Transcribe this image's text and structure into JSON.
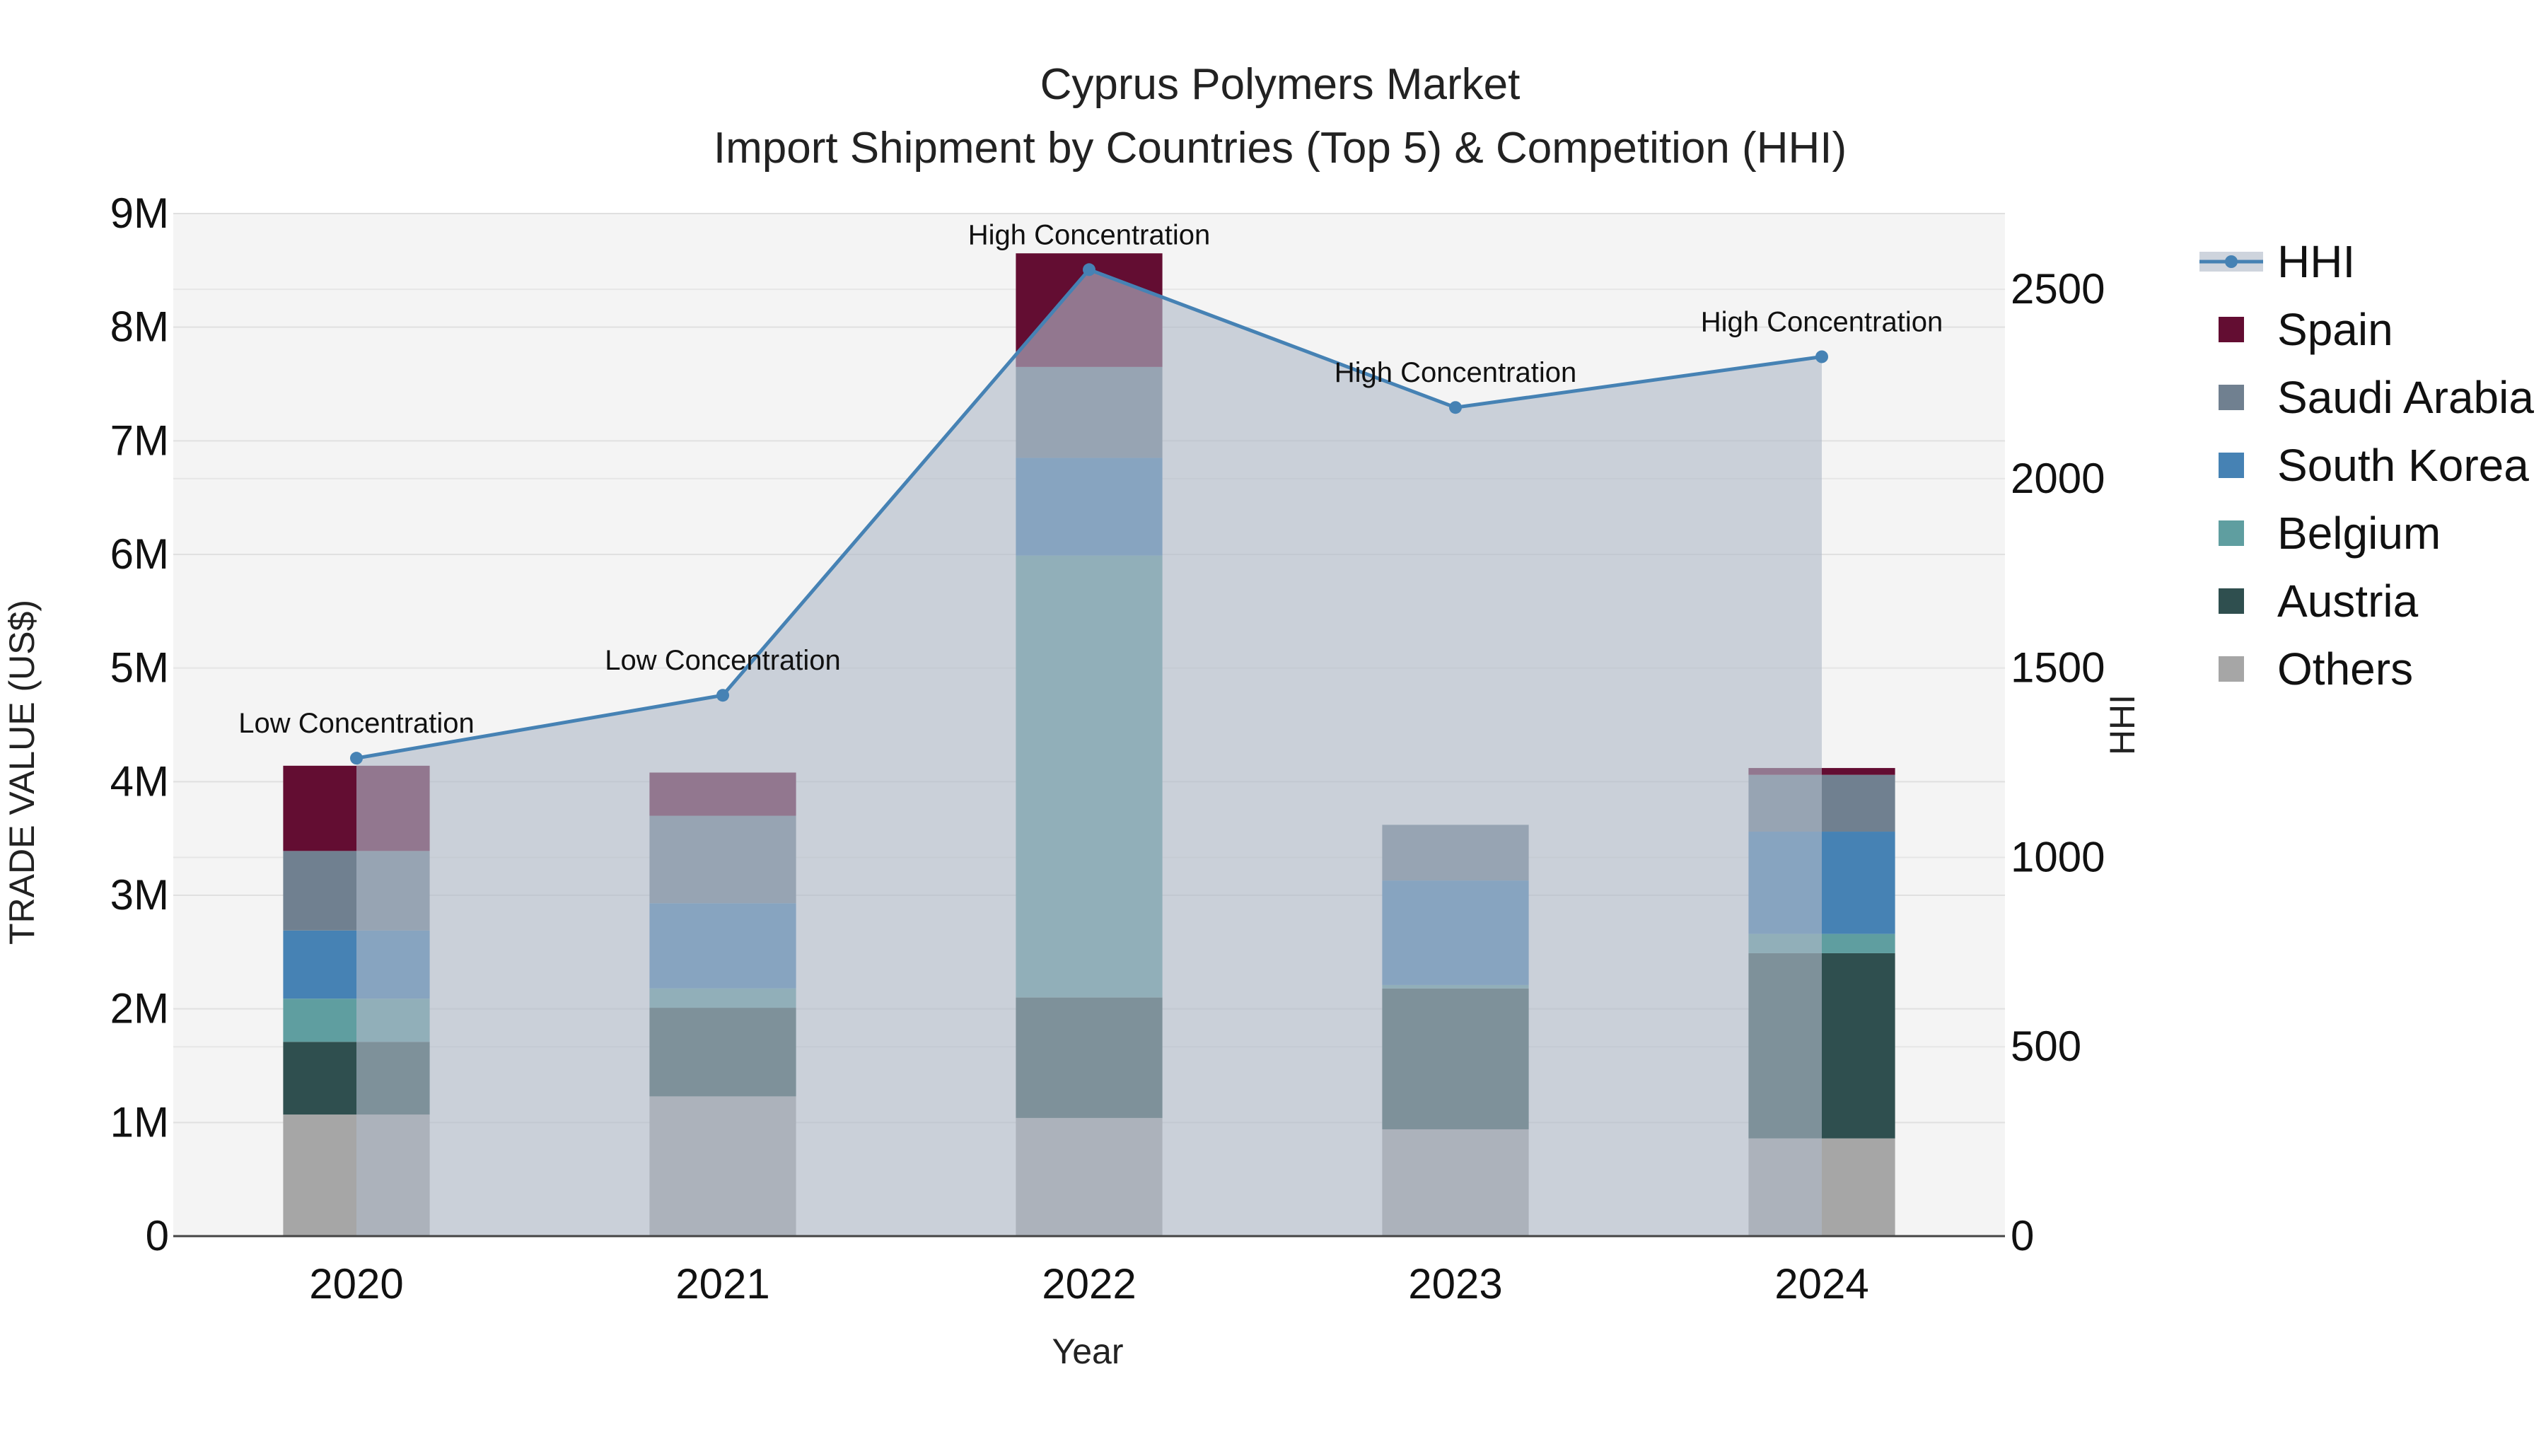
{
  "chart_data": {
    "type": "bar",
    "title": "Cyprus Polymers Market",
    "subtitle": "Import Shipment by Countries (Top 5) & Competition (HHI)",
    "xlabel": "Year",
    "ylabel": "TRADE VALUE (US$)",
    "y2label": "HHI",
    "categories": [
      "2020",
      "2021",
      "2022",
      "2023",
      "2024"
    ],
    "ylim": [
      0,
      9000000
    ],
    "y2lim": [
      0,
      2700
    ],
    "y_ticks": [
      "0",
      "1M",
      "2M",
      "3M",
      "4M",
      "5M",
      "6M",
      "7M",
      "8M",
      "9M"
    ],
    "y2_ticks": [
      "0",
      "500",
      "1000",
      "1500",
      "2000",
      "2500"
    ],
    "grid": true,
    "legend_position": "right",
    "series": [
      {
        "name": "Others",
        "color": "#a6a6a6",
        "values": [
          1070000,
          1230000,
          1040000,
          940000,
          860000
        ]
      },
      {
        "name": "Austria",
        "color": "#2f4f4f",
        "values": [
          640000,
          780000,
          1060000,
          1240000,
          1630000
        ]
      },
      {
        "name": "Belgium",
        "color": "#5f9ea0",
        "values": [
          380000,
          170000,
          3890000,
          30000,
          170000
        ]
      },
      {
        "name": "South Korea",
        "color": "#4682b4",
        "values": [
          600000,
          750000,
          860000,
          920000,
          900000
        ]
      },
      {
        "name": "Saudi Arabia",
        "color": "#708090",
        "values": [
          700000,
          770000,
          800000,
          490000,
          500000
        ]
      },
      {
        "name": "Spain",
        "color": "#630d32",
        "values": [
          750000,
          380000,
          1000000,
          0,
          60000
        ]
      }
    ],
    "hhi": {
      "name": "HHI",
      "color": "#4682b4",
      "values": [
        1262,
        1428,
        2552,
        2188,
        2322
      ],
      "labels": [
        "Low Concentration",
        "Low Concentration",
        "High Concentration",
        "High Concentration",
        "High Concentration"
      ]
    },
    "legend_order": [
      "HHI",
      "Spain",
      "Saudi Arabia",
      "South Korea",
      "Belgium",
      "Austria",
      "Others"
    ]
  }
}
